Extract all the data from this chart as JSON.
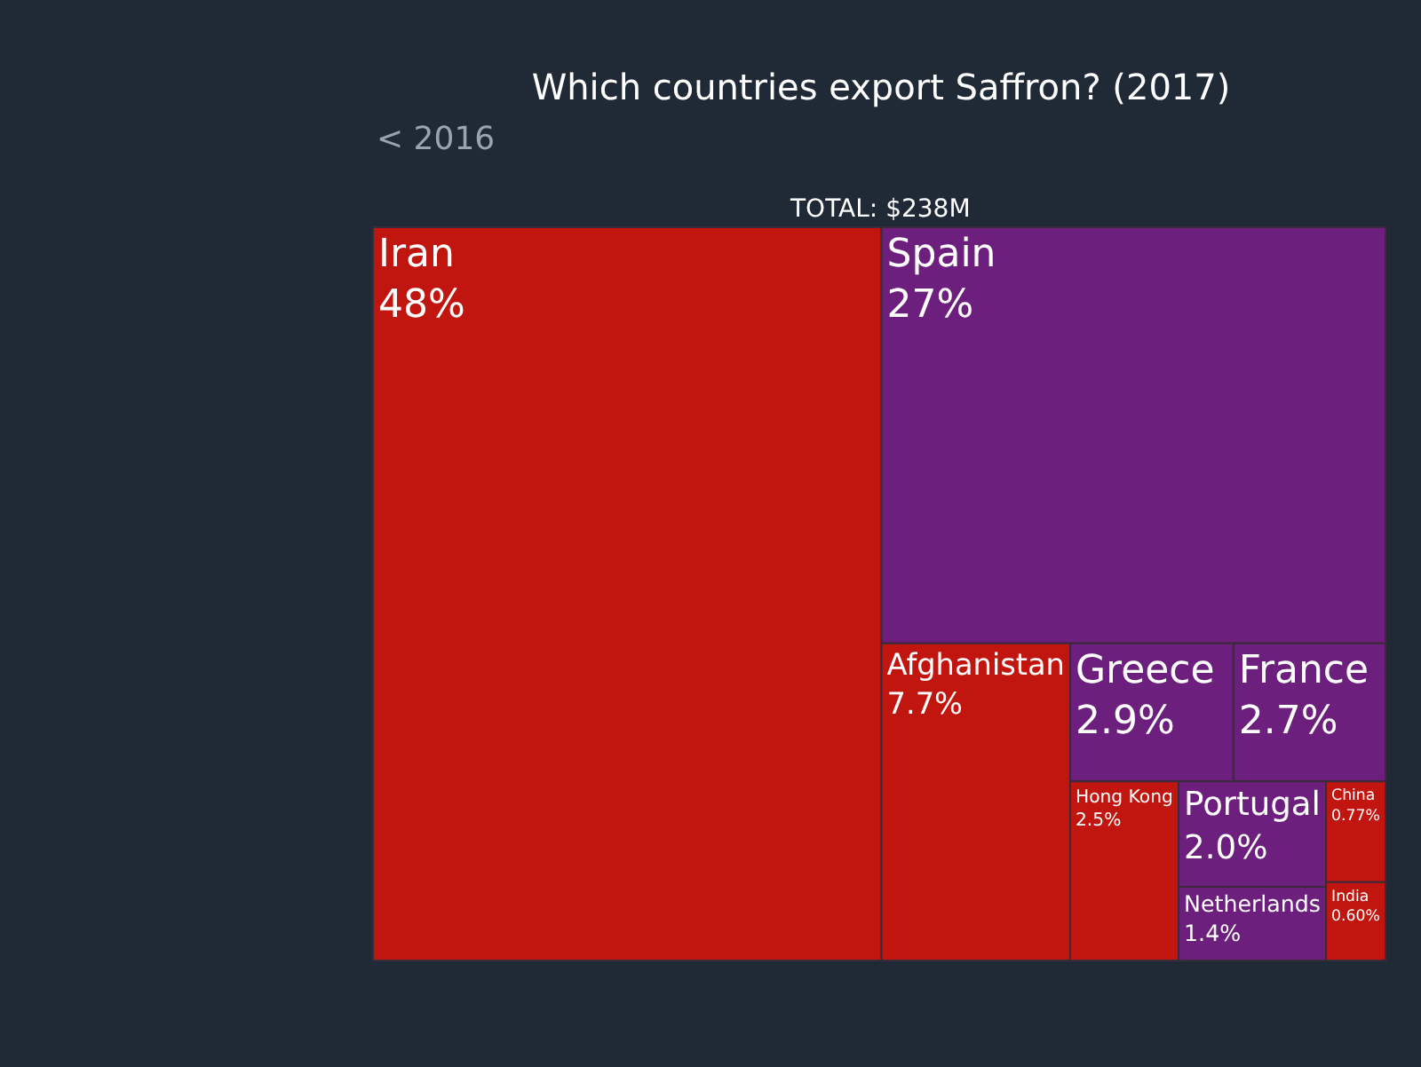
{
  "chart_data": {
    "type": "other",
    "title": "Which countries export Saffron? (2017)",
    "subtitle": "TOTAL: $238M",
    "annotations": [
      "< 2016"
    ],
    "categories": [
      "Iran",
      "Spain",
      "Afghanistan",
      "Greece",
      "France",
      "Hong Kong",
      "Portugal",
      "Netherlands",
      "China",
      "India"
    ],
    "values": [
      48,
      27,
      7.7,
      2.9,
      2.7,
      2.5,
      2.0,
      1.4,
      0.77,
      0.6
    ],
    "value_labels": [
      "48%",
      "27%",
      "7.7%",
      "2.9%",
      "2.7%",
      "2.5%",
      "2.0%",
      "1.4%",
      "0.77%",
      "0.60%"
    ],
    "colors": [
      "#c0160f",
      "#6c1f7c",
      "#c0160f",
      "#6c1f7c",
      "#6c1f7c",
      "#c0160f",
      "#6c1f7c",
      "#6c1f7c",
      "#c0160f",
      "#c0160f"
    ]
  }
}
